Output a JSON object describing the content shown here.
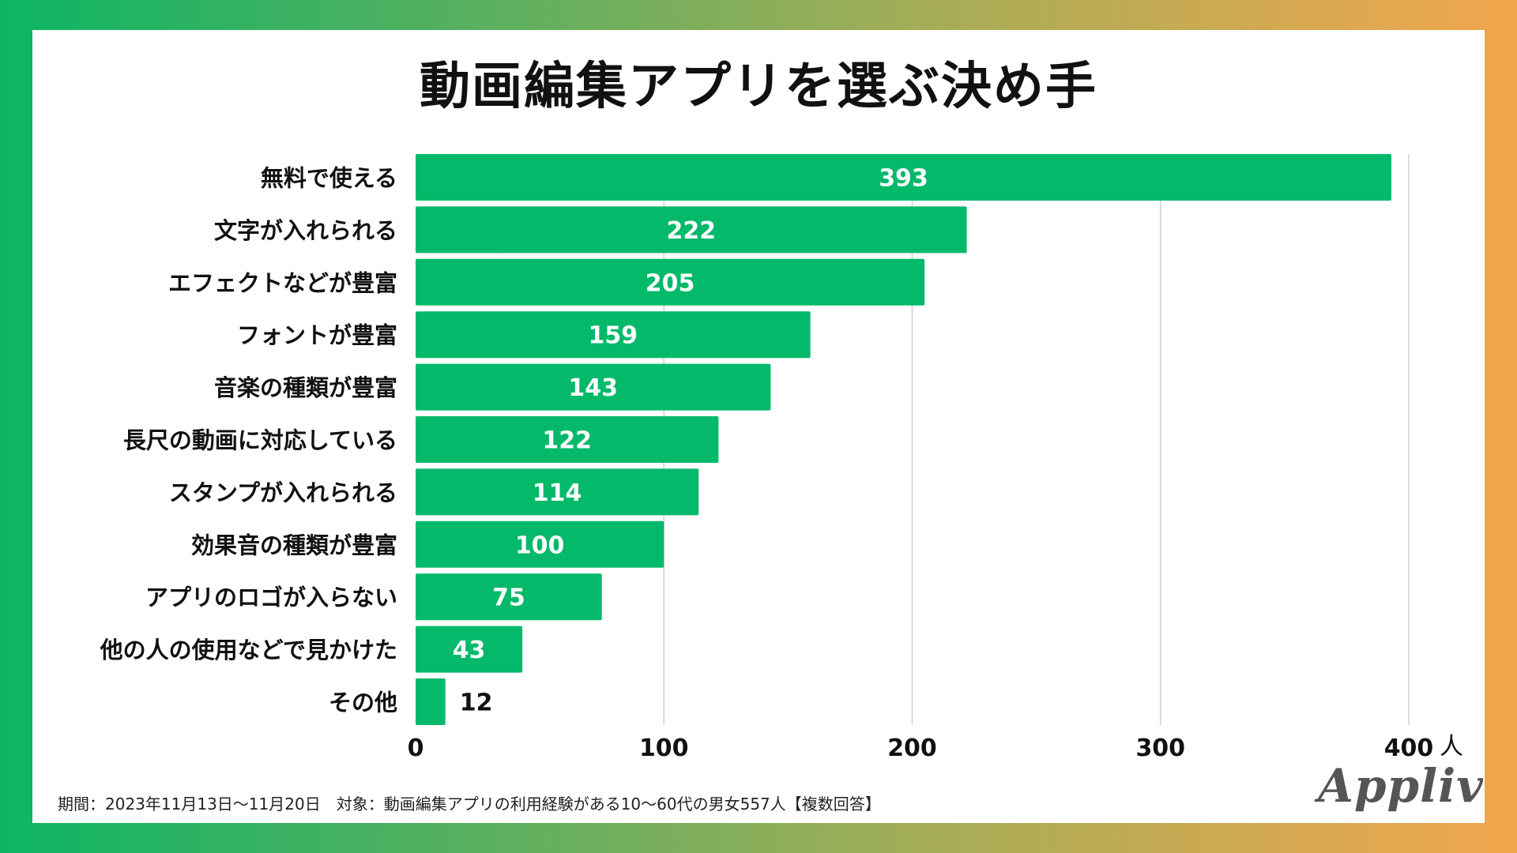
{
  "title": "動画編集アプリを選ぶ決め手",
  "footnote": "期間：2023年11月13日〜11月20日　対象：動画編集アプリの利用経験がある10〜60代の男女557人【複数回答】",
  "logo_text": "Appliv",
  "colors": {
    "bar": "#05b96a",
    "label_inside": "#ffffff",
    "label_outside": "#111111",
    "grid": "#d0d0d0"
  },
  "chart_data": {
    "type": "bar",
    "orientation": "horizontal",
    "title": "動画編集アプリを選ぶ決め手",
    "categories": [
      "無料で使える",
      "文字が入れられる",
      "エフェクトなどが豊富",
      "フォントが豊富",
      "音楽の種類が豊富",
      "長尺の動画に対応している",
      "スタンプが入れられる",
      "効果音の種類が豊富",
      "アプリのロゴが入らない",
      "他の人の使用などで見かけた",
      "その他"
    ],
    "values": [
      393,
      222,
      205,
      159,
      143,
      122,
      114,
      100,
      75,
      43,
      12
    ],
    "xlim": [
      0,
      400
    ],
    "xticks": [
      0,
      100,
      200,
      300,
      400
    ],
    "xunit": "人",
    "grid": true
  }
}
